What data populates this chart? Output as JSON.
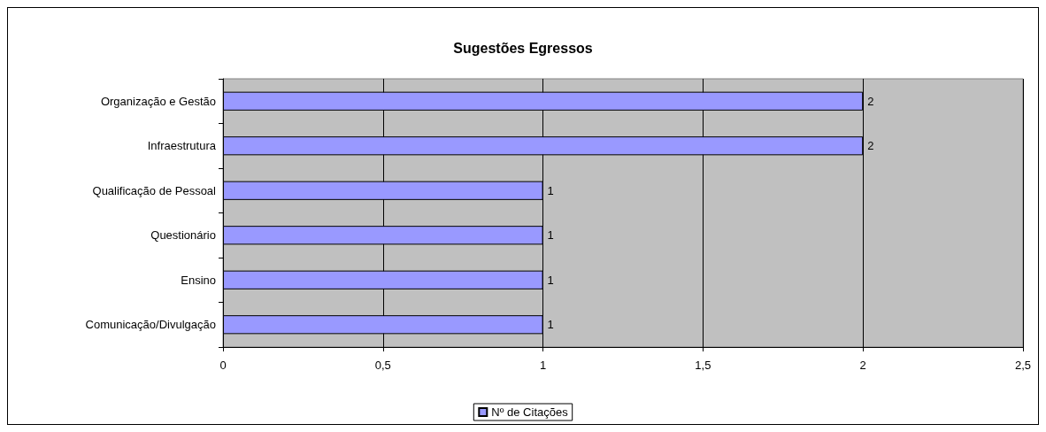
{
  "chart_data": {
    "type": "bar",
    "orientation": "horizontal",
    "title": "Sugestões Egressos",
    "categories": [
      "Organização e Gestão",
      "Infraestrutura",
      "Qualificação de Pessoal",
      "Questionário",
      "Ensino",
      "Comunicação/Divulgação"
    ],
    "series": [
      {
        "name": "Nº de Citações",
        "color": "#9999ff",
        "values": [
          2,
          2,
          1,
          1,
          1,
          1
        ]
      }
    ],
    "xlim": [
      0,
      2.5
    ],
    "xticks": [
      0,
      {
        "value": 0.5,
        "label": "0,5"
      },
      1,
      {
        "value": 1.5,
        "label": "1,5"
      },
      2,
      {
        "value": 2.5,
        "label": "2,5"
      }
    ],
    "grid": "x",
    "legend": "bottom",
    "data_labels": true
  }
}
